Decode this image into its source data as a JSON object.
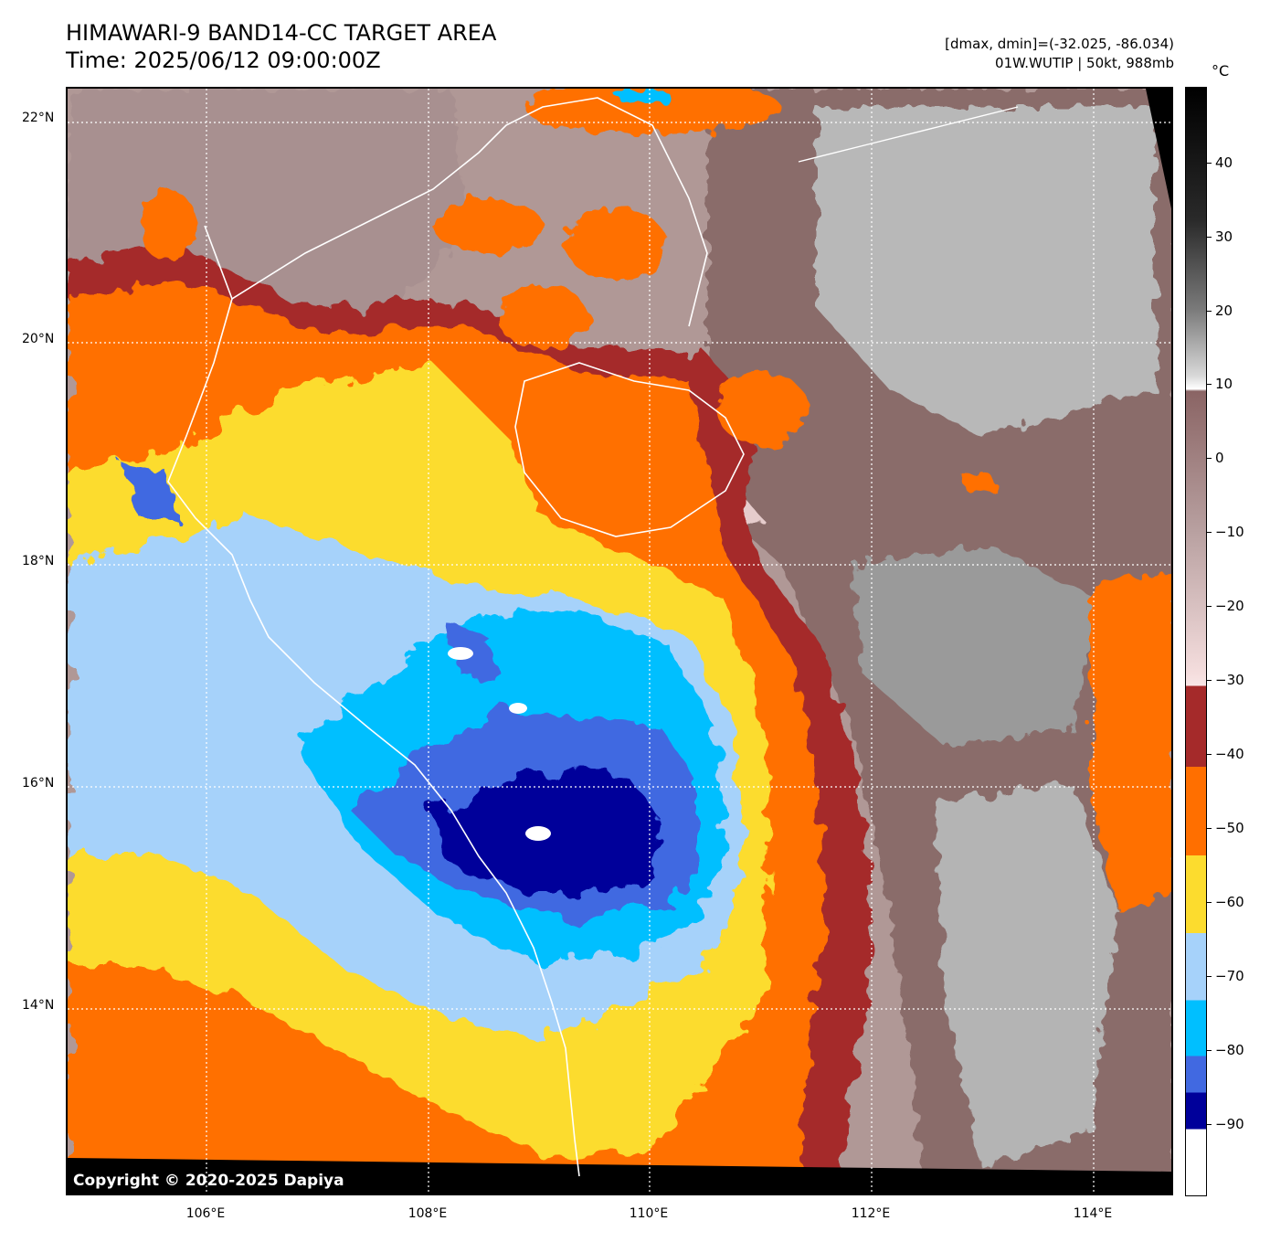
{
  "header": {
    "title_line1": "HIMAWARI-9 BAND14-CC TARGET AREA",
    "title_line2": "Time: 2025/06/12 09:00:00Z",
    "info_line1": "[dmax, dmin]=(-32.025, -86.034)",
    "info_line2": "01W.WUTIP | 50kt, 988mb"
  },
  "map": {
    "lat_labels": [
      "22°N",
      "20°N",
      "18°N",
      "16°N",
      "14°N"
    ],
    "lon_labels": [
      "106°E",
      "108°E",
      "110°E",
      "112°E",
      "114°E"
    ],
    "copyright": "Copyright © 2020-2025 Dapiya",
    "colors": {
      "dark_blue": "#00009a",
      "royal_blue": "#4169e1",
      "sky_blue": "#00bfff",
      "light_blue": "#a6d2fa",
      "yellow": "#fcdc2e",
      "orange": "#ff6f00",
      "dark_red": "#a52a2a",
      "pink": "#f0d0d0",
      "mauve": "#9a7a78",
      "gray": "#a0a0a0",
      "light_gray": "#d0d0d0"
    }
  },
  "colorbar": {
    "unit": "°C",
    "ticks": [
      "40",
      "30",
      "20",
      "10",
      "0",
      "−10",
      "−20",
      "−30",
      "−40",
      "−50",
      "−60",
      "−70",
      "−80",
      "−90"
    ]
  }
}
